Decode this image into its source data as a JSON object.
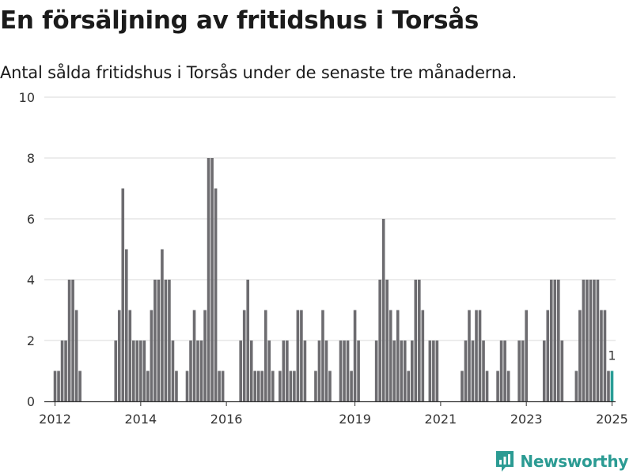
{
  "header": {
    "title": "En försäljning av fritidshus i Torsås",
    "subtitle": "Antal sålda fritidshus i Torsås under de senaste tre månaderna."
  },
  "brand": {
    "name": "Newsworthy",
    "icon": "newsworthy-logo-icon",
    "color": "#2b9b93"
  },
  "colors": {
    "bar": "#6d6c70",
    "highlight": "#2a9d96",
    "grid": "#d9d9d9",
    "axis": "#333333"
  },
  "chart_data": {
    "type": "bar",
    "title": "En försäljning av fritidshus i Torsås",
    "subtitle": "Antal sålda fritidshus i Torsås under de senaste tre månaderna.",
    "xlabel": "",
    "ylabel": "",
    "ylim": [
      0,
      10
    ],
    "yticks": [
      0,
      2,
      4,
      6,
      8,
      10
    ],
    "xticks": [
      "2012",
      "2014",
      "2016",
      "2019",
      "2021",
      "2023",
      "2025"
    ],
    "xrange": [
      "2011-10",
      "2025-02"
    ],
    "grid": true,
    "legend": "none",
    "highlight_label": "1",
    "series": [
      {
        "values": [
          {
            "x": "2012-01",
            "y": 1
          },
          {
            "x": "2012-02",
            "y": 1
          },
          {
            "x": "2012-03",
            "y": 2
          },
          {
            "x": "2012-04",
            "y": 2
          },
          {
            "x": "2012-05",
            "y": 4
          },
          {
            "x": "2012-06",
            "y": 4
          },
          {
            "x": "2012-07",
            "y": 3
          },
          {
            "x": "2012-08",
            "y": 1
          },
          {
            "x": "2013-06",
            "y": 2
          },
          {
            "x": "2013-07",
            "y": 3
          },
          {
            "x": "2013-08",
            "y": 7
          },
          {
            "x": "2013-09",
            "y": 5
          },
          {
            "x": "2013-10",
            "y": 3
          },
          {
            "x": "2013-11",
            "y": 2
          },
          {
            "x": "2013-12",
            "y": 2
          },
          {
            "x": "2014-01",
            "y": 2
          },
          {
            "x": "2014-02",
            "y": 2
          },
          {
            "x": "2014-03",
            "y": 1
          },
          {
            "x": "2014-04",
            "y": 3
          },
          {
            "x": "2014-05",
            "y": 4
          },
          {
            "x": "2014-06",
            "y": 4
          },
          {
            "x": "2014-07",
            "y": 5
          },
          {
            "x": "2014-08",
            "y": 4
          },
          {
            "x": "2014-09",
            "y": 4
          },
          {
            "x": "2014-10",
            "y": 2
          },
          {
            "x": "2014-11",
            "y": 1
          },
          {
            "x": "2015-02",
            "y": 1
          },
          {
            "x": "2015-03",
            "y": 2
          },
          {
            "x": "2015-04",
            "y": 3
          },
          {
            "x": "2015-05",
            "y": 2
          },
          {
            "x": "2015-06",
            "y": 2
          },
          {
            "x": "2015-07",
            "y": 3
          },
          {
            "x": "2015-08",
            "y": 8
          },
          {
            "x": "2015-09",
            "y": 8
          },
          {
            "x": "2015-10",
            "y": 7
          },
          {
            "x": "2015-11",
            "y": 1
          },
          {
            "x": "2015-12",
            "y": 1
          },
          {
            "x": "2016-05",
            "y": 2
          },
          {
            "x": "2016-06",
            "y": 3
          },
          {
            "x": "2016-07",
            "y": 4
          },
          {
            "x": "2016-08",
            "y": 2
          },
          {
            "x": "2016-09",
            "y": 1
          },
          {
            "x": "2016-10",
            "y": 1
          },
          {
            "x": "2016-11",
            "y": 1
          },
          {
            "x": "2016-12",
            "y": 3
          },
          {
            "x": "2017-01",
            "y": 2
          },
          {
            "x": "2017-02",
            "y": 1
          },
          {
            "x": "2017-04",
            "y": 1
          },
          {
            "x": "2017-05",
            "y": 2
          },
          {
            "x": "2017-06",
            "y": 2
          },
          {
            "x": "2017-07",
            "y": 1
          },
          {
            "x": "2017-08",
            "y": 1
          },
          {
            "x": "2017-09",
            "y": 3
          },
          {
            "x": "2017-10",
            "y": 3
          },
          {
            "x": "2017-11",
            "y": 2
          },
          {
            "x": "2018-02",
            "y": 1
          },
          {
            "x": "2018-03",
            "y": 2
          },
          {
            "x": "2018-04",
            "y": 3
          },
          {
            "x": "2018-05",
            "y": 2
          },
          {
            "x": "2018-06",
            "y": 1
          },
          {
            "x": "2018-09",
            "y": 2
          },
          {
            "x": "2018-10",
            "y": 2
          },
          {
            "x": "2018-11",
            "y": 2
          },
          {
            "x": "2018-12",
            "y": 1
          },
          {
            "x": "2019-01",
            "y": 3
          },
          {
            "x": "2019-02",
            "y": 2
          },
          {
            "x": "2019-07",
            "y": 2
          },
          {
            "x": "2019-08",
            "y": 4
          },
          {
            "x": "2019-09",
            "y": 6
          },
          {
            "x": "2019-10",
            "y": 4
          },
          {
            "x": "2019-11",
            "y": 3
          },
          {
            "x": "2019-12",
            "y": 2
          },
          {
            "x": "2020-01",
            "y": 3
          },
          {
            "x": "2020-02",
            "y": 2
          },
          {
            "x": "2020-03",
            "y": 2
          },
          {
            "x": "2020-04",
            "y": 1
          },
          {
            "x": "2020-05",
            "y": 2
          },
          {
            "x": "2020-06",
            "y": 4
          },
          {
            "x": "2020-07",
            "y": 4
          },
          {
            "x": "2020-08",
            "y": 3
          },
          {
            "x": "2020-10",
            "y": 2
          },
          {
            "x": "2020-11",
            "y": 2
          },
          {
            "x": "2020-12",
            "y": 2
          },
          {
            "x": "2021-07",
            "y": 1
          },
          {
            "x": "2021-08",
            "y": 2
          },
          {
            "x": "2021-09",
            "y": 3
          },
          {
            "x": "2021-10",
            "y": 2
          },
          {
            "x": "2021-11",
            "y": 3
          },
          {
            "x": "2021-12",
            "y": 3
          },
          {
            "x": "2022-01",
            "y": 2
          },
          {
            "x": "2022-02",
            "y": 1
          },
          {
            "x": "2022-05",
            "y": 1
          },
          {
            "x": "2022-06",
            "y": 2
          },
          {
            "x": "2022-07",
            "y": 2
          },
          {
            "x": "2022-08",
            "y": 1
          },
          {
            "x": "2022-11",
            "y": 2
          },
          {
            "x": "2022-12",
            "y": 2
          },
          {
            "x": "2023-01",
            "y": 3
          },
          {
            "x": "2023-06",
            "y": 2
          },
          {
            "x": "2023-07",
            "y": 3
          },
          {
            "x": "2023-08",
            "y": 4
          },
          {
            "x": "2023-09",
            "y": 4
          },
          {
            "x": "2023-10",
            "y": 4
          },
          {
            "x": "2023-11",
            "y": 2
          },
          {
            "x": "2024-03",
            "y": 1
          },
          {
            "x": "2024-04",
            "y": 3
          },
          {
            "x": "2024-05",
            "y": 4
          },
          {
            "x": "2024-06",
            "y": 4
          },
          {
            "x": "2024-07",
            "y": 4
          },
          {
            "x": "2024-08",
            "y": 4
          },
          {
            "x": "2024-09",
            "y": 4
          },
          {
            "x": "2024-10",
            "y": 3
          },
          {
            "x": "2024-11",
            "y": 3
          },
          {
            "x": "2024-12",
            "y": 1
          },
          {
            "x": "2025-01",
            "y": 1,
            "highlight": true
          }
        ]
      }
    ]
  }
}
